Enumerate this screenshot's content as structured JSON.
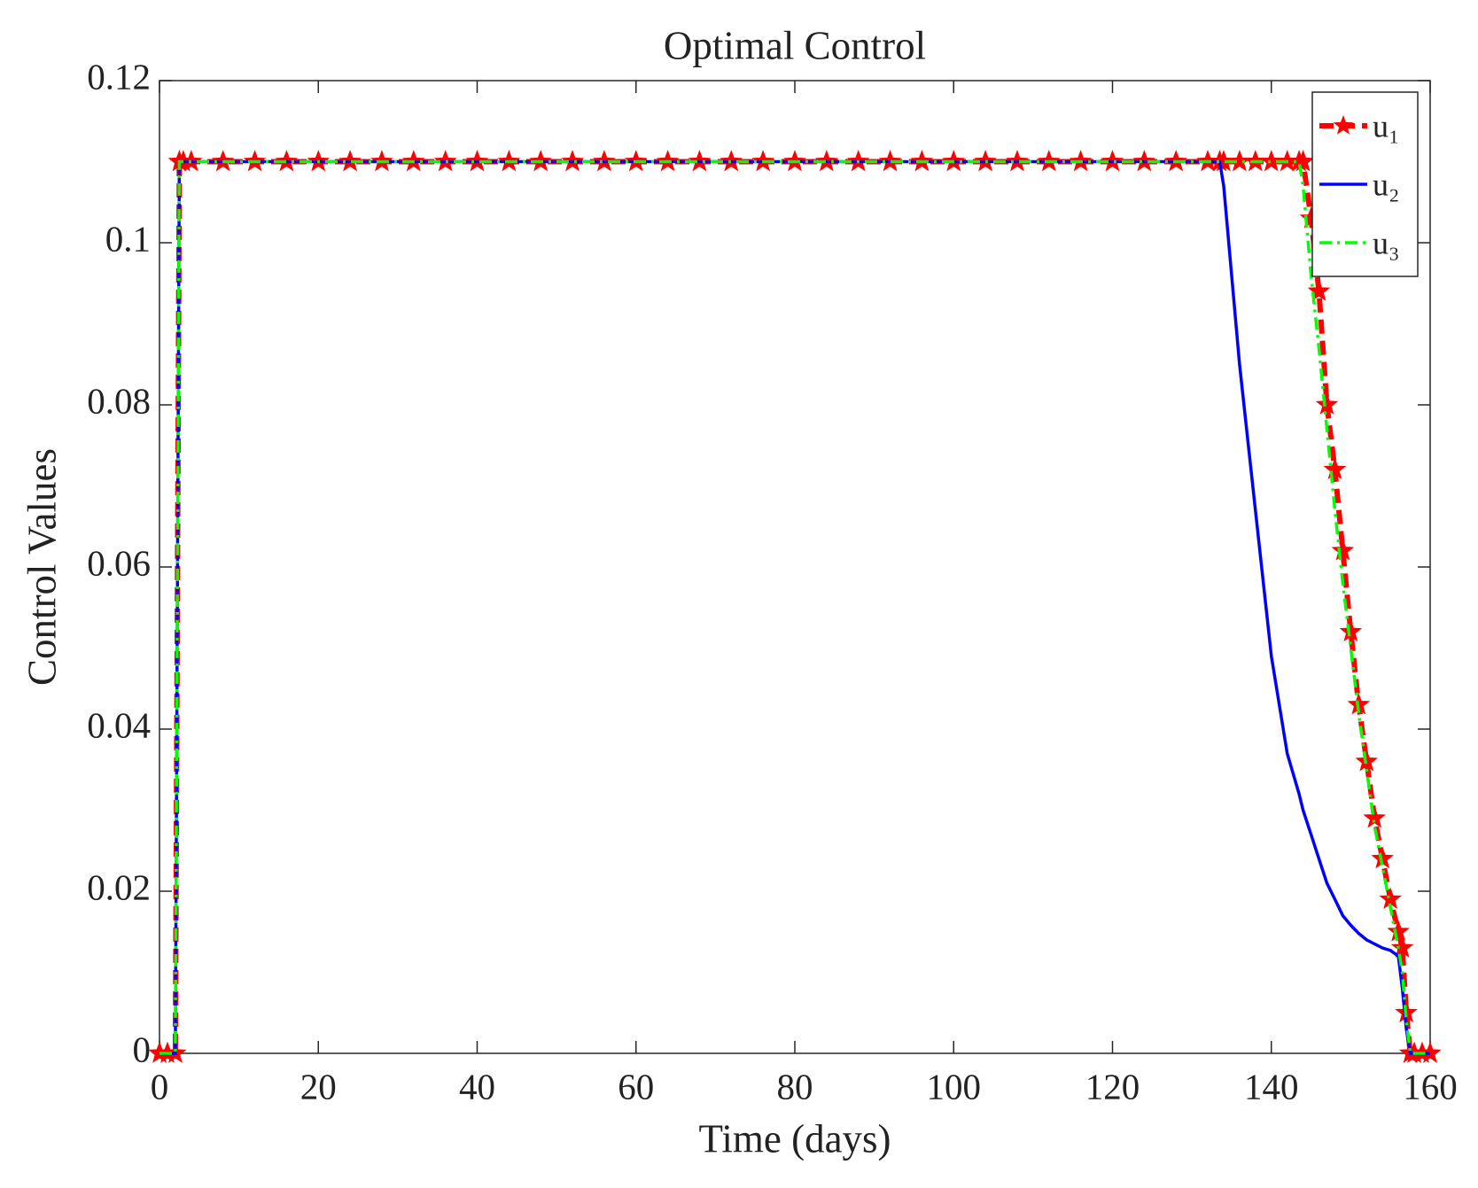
{
  "chart_data": {
    "type": "line",
    "title": "Optimal Control",
    "x_label": "Time (days)",
    "y_label": "Control Values",
    "x": [
      0,
      1,
      2,
      2.5,
      3,
      4,
      8,
      12,
      16,
      20,
      24,
      28,
      32,
      36,
      40,
      44,
      48,
      52,
      56,
      60,
      64,
      68,
      72,
      76,
      80,
      84,
      88,
      92,
      96,
      100,
      104,
      108,
      112,
      116,
      120,
      124,
      128,
      132,
      133.5,
      134,
      136,
      138,
      140,
      142,
      143.5,
      144,
      145,
      146,
      147,
      148,
      149,
      150,
      151,
      152,
      153,
      154,
      155,
      156,
      156.5,
      157,
      157.5,
      158,
      159,
      160
    ],
    "series": [
      {
        "name": "u₁",
        "color": "#ff0000",
        "style": "dashed",
        "marker": "star",
        "values": [
          0,
          0,
          0,
          0.11,
          0.11,
          0.11,
          0.11,
          0.11,
          0.11,
          0.11,
          0.11,
          0.11,
          0.11,
          0.11,
          0.11,
          0.11,
          0.11,
          0.11,
          0.11,
          0.11,
          0.11,
          0.11,
          0.11,
          0.11,
          0.11,
          0.11,
          0.11,
          0.11,
          0.11,
          0.11,
          0.11,
          0.11,
          0.11,
          0.11,
          0.11,
          0.11,
          0.11,
          0.11,
          0.11,
          0.11,
          0.11,
          0.11,
          0.11,
          0.11,
          0.11,
          0.11,
          0.103,
          0.094,
          0.08,
          0.072,
          0.062,
          0.052,
          0.043,
          0.036,
          0.029,
          0.024,
          0.019,
          0.015,
          0.013,
          0.005,
          0,
          0,
          0,
          0
        ]
      },
      {
        "name": "u₂",
        "color": "#0000ff",
        "style": "solid",
        "values": [
          0,
          0,
          0,
          0.11,
          0.11,
          0.11,
          0.11,
          0.11,
          0.11,
          0.11,
          0.11,
          0.11,
          0.11,
          0.11,
          0.11,
          0.11,
          0.11,
          0.11,
          0.11,
          0.11,
          0.11,
          0.11,
          0.11,
          0.11,
          0.11,
          0.11,
          0.11,
          0.11,
          0.11,
          0.11,
          0.11,
          0.11,
          0.11,
          0.11,
          0.11,
          0.11,
          0.11,
          0.11,
          0.11,
          0.107,
          0.085,
          0.067,
          0.049,
          0.037,
          0.032,
          0.03,
          0.027,
          0.024,
          0.021,
          0.019,
          0.017,
          0.0158,
          0.0148,
          0.014,
          0.0135,
          0.013,
          0.0127,
          0.012,
          0.008,
          0.003,
          0,
          0,
          0,
          0
        ]
      },
      {
        "name": "u₃",
        "color": "#00ff00",
        "style": "dashdot",
        "values": [
          0,
          0,
          0,
          0.11,
          0.11,
          0.11,
          0.11,
          0.11,
          0.11,
          0.11,
          0.11,
          0.11,
          0.11,
          0.11,
          0.11,
          0.11,
          0.11,
          0.11,
          0.11,
          0.11,
          0.11,
          0.11,
          0.11,
          0.11,
          0.11,
          0.11,
          0.11,
          0.11,
          0.11,
          0.11,
          0.11,
          0.11,
          0.11,
          0.11,
          0.11,
          0.11,
          0.11,
          0.11,
          0.11,
          0.11,
          0.11,
          0.11,
          0.11,
          0.11,
          0.11,
          0.107,
          0.096,
          0.087,
          0.077,
          0.067,
          0.058,
          0.05,
          0.042,
          0.035,
          0.028,
          0.023,
          0.018,
          0.013,
          0.01,
          0.004,
          0,
          0,
          0,
          0
        ]
      }
    ],
    "xlim": [
      0,
      160
    ],
    "xticks": [
      0,
      20,
      40,
      60,
      80,
      100,
      120,
      140,
      160
    ],
    "ylim": [
      0,
      0.12
    ],
    "yticks": [
      0,
      0.02,
      0.04,
      0.06,
      0.08,
      0.1,
      0.12
    ],
    "grid": false,
    "legend": "top-right"
  }
}
